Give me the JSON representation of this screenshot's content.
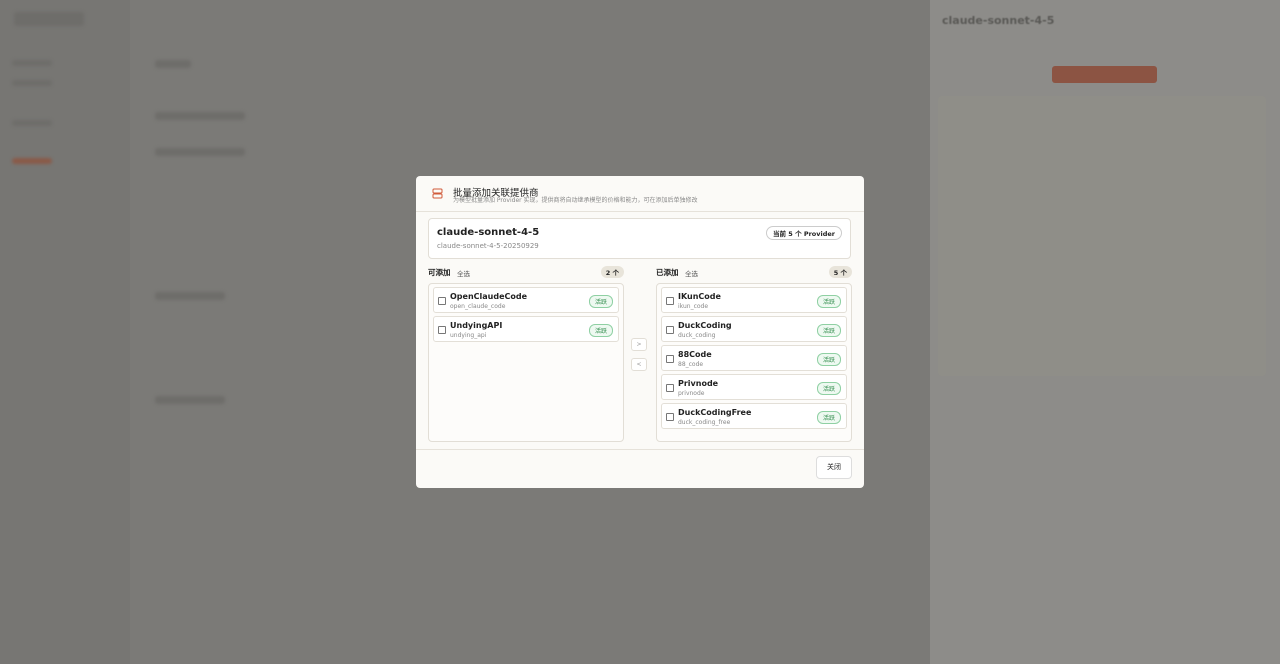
{
  "background_panel": {
    "title": "claude-sonnet-4-5"
  },
  "modal": {
    "title": "批量添加关联提供商",
    "subtitle": "为模型批量添加 Provider 实现，提供商将自动继承模型的价格和能力，可在添加后单独修改"
  },
  "model": {
    "name": "claude-sonnet-4-5",
    "id": "claude-sonnet-4-5-20250929",
    "badge": "当前 5 个 Provider"
  },
  "available": {
    "label": "可添加",
    "select_all": "全选",
    "count": "2 个",
    "items": [
      {
        "name": "OpenClaudeCode",
        "id": "open_claude_code",
        "status": "活跃"
      },
      {
        "name": "UndyingAPI",
        "id": "undying_api",
        "status": "活跃"
      }
    ]
  },
  "added": {
    "label": "已添加",
    "select_all": "全选",
    "count": "5 个",
    "items": [
      {
        "name": "IKunCode",
        "id": "ikun_code",
        "status": "活跃"
      },
      {
        "name": "DuckCoding",
        "id": "duck_coding",
        "status": "活跃"
      },
      {
        "name": "88Code",
        "id": "88_code",
        "status": "活跃"
      },
      {
        "name": "Privnode",
        "id": "privnode",
        "status": "活跃"
      },
      {
        "name": "DuckCodingFree",
        "id": "duck_coding_free",
        "status": "活跃"
      }
    ]
  },
  "actions": {
    "move_right": ">",
    "move_left": "<",
    "close": "关闭"
  }
}
